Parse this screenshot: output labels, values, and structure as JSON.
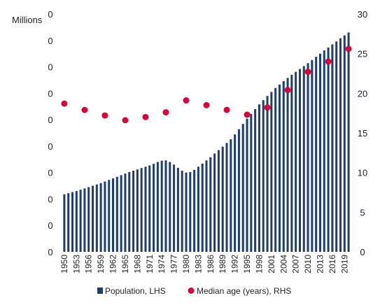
{
  "chart_data": {
    "type": "bar",
    "left_axis_label": "Millions",
    "x": [
      1950,
      1951,
      1952,
      1953,
      1954,
      1955,
      1956,
      1957,
      1958,
      1959,
      1960,
      1961,
      1962,
      1963,
      1964,
      1965,
      1966,
      1967,
      1968,
      1969,
      1970,
      1971,
      1972,
      1973,
      1974,
      1975,
      1976,
      1977,
      1978,
      1979,
      1980,
      1981,
      1982,
      1983,
      1984,
      1985,
      1986,
      1987,
      1988,
      1989,
      1990,
      1991,
      1992,
      1993,
      1994,
      1995,
      1996,
      1997,
      1998,
      1999,
      2000,
      2001,
      2002,
      2003,
      2004,
      2005,
      2006,
      2007,
      2008,
      2009,
      2010,
      2011,
      2012,
      2013,
      2014,
      2015,
      2016,
      2017,
      2018,
      2019,
      2020
    ],
    "x_tick_labels": [
      "1950",
      "1953",
      "1956",
      "1959",
      "1962",
      "1965",
      "1968",
      "1971",
      "1974",
      "1977",
      "1980",
      "1983",
      "1986",
      "1989",
      "1992",
      "1995",
      "1998",
      "2001",
      "2004",
      "2007",
      "2010",
      "2013",
      "2016",
      "2019"
    ],
    "left_axis": {
      "tick_labels": [
        "0",
        "0",
        "0",
        "0",
        "0",
        "0",
        "0",
        "0",
        "0",
        "0"
      ],
      "ylim": [
        0,
        9
      ]
    },
    "right_axis": {
      "tick_labels": [
        "0",
        "5",
        "10",
        "15",
        "20",
        "25",
        "30"
      ],
      "ylim": [
        0,
        30
      ]
    },
    "series": [
      {
        "name": "Population, LHS",
        "type": "bar",
        "axis": "left",
        "color": "#1f3d6e",
        "values": [
          2.18,
          2.22,
          2.26,
          2.3,
          2.35,
          2.4,
          2.45,
          2.5,
          2.55,
          2.6,
          2.66,
          2.72,
          2.78,
          2.84,
          2.9,
          2.96,
          3.02,
          3.07,
          3.12,
          3.17,
          3.22,
          3.27,
          3.33,
          3.4,
          3.45,
          3.46,
          3.4,
          3.3,
          3.18,
          3.07,
          3.0,
          3.02,
          3.1,
          3.22,
          3.34,
          3.46,
          3.58,
          3.72,
          3.85,
          3.98,
          4.12,
          4.26,
          4.44,
          4.64,
          4.84,
          5.04,
          5.22,
          5.4,
          5.58,
          5.74,
          5.9,
          6.05,
          6.2,
          6.33,
          6.46,
          6.58,
          6.7,
          6.81,
          6.92,
          7.03,
          7.14,
          7.26,
          7.38,
          7.5,
          7.62,
          7.73,
          7.85,
          7.96,
          8.08,
          8.19,
          8.3
        ]
      },
      {
        "name": "Median age (years), RHS",
        "type": "scatter",
        "axis": "right",
        "color": "#d20a3c",
        "x": [
          1950,
          1955,
          1960,
          1965,
          1970,
          1975,
          1980,
          1985,
          1990,
          1995,
          2000,
          2005,
          2010,
          2015,
          2020
        ],
        "values": [
          18.7,
          17.9,
          17.2,
          16.6,
          17.0,
          17.6,
          19.1,
          18.5,
          17.9,
          17.3,
          18.2,
          20.4,
          22.7,
          24.0,
          25.6
        ]
      }
    ],
    "legend_placement": "bottom"
  }
}
